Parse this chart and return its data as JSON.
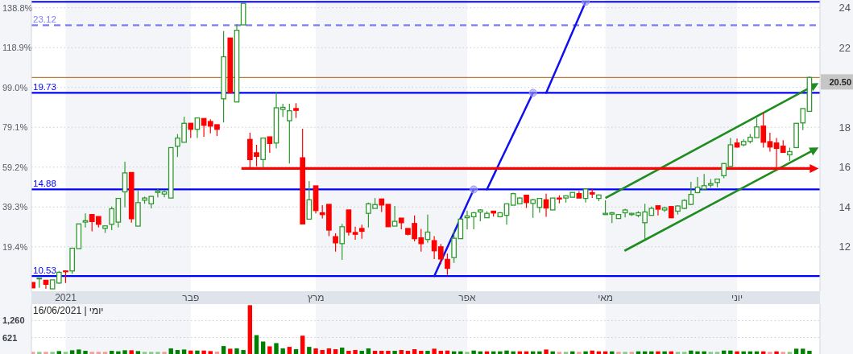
{
  "chart_data": [
    {
      "type": "candlestick",
      "categories": [
        null,
        null,
        null,
        null,
        null,
        "2021",
        null,
        null,
        null,
        null,
        null,
        null,
        null,
        null,
        null,
        null,
        null,
        null,
        null,
        null,
        null,
        null,
        null,
        null,
        "פבר",
        null,
        null,
        null,
        null,
        null,
        null,
        null,
        null,
        null,
        null,
        null,
        null,
        null,
        null,
        null,
        null,
        null,
        null,
        "מרץ",
        null,
        null,
        null,
        null,
        null,
        null,
        null,
        null,
        null,
        null,
        null,
        null,
        null,
        null,
        null,
        null,
        null,
        null,
        null,
        null,
        null,
        null,
        "אפר",
        null,
        null,
        null,
        null,
        null,
        null,
        null,
        null,
        null,
        null,
        null,
        null,
        null,
        null,
        null,
        null,
        null,
        null,
        null,
        null,
        "מאי",
        null,
        null,
        null,
        null,
        null,
        null,
        null,
        null,
        null,
        null,
        null,
        null,
        null,
        null,
        null,
        null,
        null,
        null,
        null,
        "יוני",
        null,
        null,
        null,
        null,
        null,
        null,
        null,
        null,
        null,
        null,
        null
      ],
      "ylim": [
        9.77,
        24.39
      ],
      "yticks": [
        12,
        14,
        16,
        18,
        {
          "value": 20,
          "label": null
        },
        22,
        24
      ],
      "y2lim": [
        -2.79,
        142.68
      ],
      "y2ticks": [
        {
          "value": 19.4,
          "label": "19.4%"
        },
        {
          "value": 39.3,
          "label": "39.3%"
        },
        {
          "value": 59.2,
          "label": "59.2%"
        },
        {
          "value": 79.1,
          "label": "79.1%"
        },
        {
          "value": 99.0,
          "label": "99.0%"
        },
        {
          "value": 118.9,
          "label": "118.9%"
        },
        {
          "value": 138.8,
          "label": "138.8%"
        }
      ],
      "grid": "y",
      "ohlc": [
        [
          10.21,
          10.21,
          9.94,
          9.94
        ],
        [
          10.4,
          10.45,
          9.94,
          10.43
        ],
        [
          10.32,
          10.32,
          9.89,
          10.12
        ],
        [
          9.89,
          10.34,
          9.89,
          10.34
        ],
        [
          10.18,
          10.79,
          10.14,
          10.72
        ],
        [
          10.79,
          10.8,
          10.18,
          10.75
        ],
        [
          10.79,
          11.93,
          10.65,
          11.93
        ],
        [
          11.91,
          13.15,
          11.91,
          13.15
        ],
        [
          13.24,
          13.68,
          12.97,
          13.31
        ],
        [
          13.62,
          13.62,
          12.78,
          13.27
        ],
        [
          13.52,
          13.52,
          12.97,
          13.13
        ],
        [
          12.93,
          13.08,
          12.7,
          13.05
        ],
        [
          13.13,
          14.02,
          12.84,
          13.91
        ],
        [
          13.24,
          14.43,
          12.97,
          14.43
        ],
        [
          14.76,
          16.27,
          13.98,
          15.71
        ],
        [
          15.73,
          15.73,
          13.21,
          13.41
        ],
        [
          13.04,
          14.83,
          13.04,
          14.22
        ],
        [
          14.34,
          14.52,
          14.16,
          14.45
        ],
        [
          14.16,
          14.56,
          13.93,
          14.53
        ],
        [
          14.73,
          14.92,
          14.49,
          14.8
        ],
        [
          14.65,
          14.83,
          14.49,
          14.76
        ],
        [
          14.45,
          16.98,
          14.45,
          16.98
        ],
        [
          17.05,
          17.66,
          16.51,
          17.46
        ],
        [
          17.25,
          18.53,
          17.25,
          18.2
        ],
        [
          18.2,
          18.2,
          17.46,
          17.9
        ],
        [
          17.9,
          18.47,
          17.46,
          18.47
        ],
        [
          18.44,
          18.44,
          17.52,
          18.1
        ],
        [
          18.29,
          18.4,
          17.7,
          18.06
        ],
        [
          18.13,
          18.13,
          17.56,
          17.9
        ],
        [
          19.43,
          22.84,
          18.24,
          21.54
        ],
        [
          22.48,
          22.48,
          19.74,
          19.74
        ],
        [
          19.27,
          23.18,
          19.27,
          22.87
        ],
        [
          23.14,
          24.22,
          23.14,
          24.22
        ],
        [
          17.39,
          17.73,
          15.93,
          16.38
        ],
        [
          16.72,
          17.12,
          16.04,
          16.54
        ],
        [
          16.38,
          17.46,
          15.97,
          17.46
        ],
        [
          17.52,
          17.52,
          16.72,
          17.19
        ],
        [
          17.21,
          19.77,
          16.94,
          18.98
        ],
        [
          18.9,
          19.18,
          18.51,
          19.0
        ],
        [
          18.33,
          19.18,
          16.18,
          18.83
        ],
        [
          18.94,
          19.21,
          18.47,
          18.85
        ],
        [
          16.47,
          17.93,
          13.15,
          13.15
        ],
        [
          13.39,
          15.3,
          13.39,
          14.36
        ],
        [
          15.06,
          15.06,
          13.68,
          13.82
        ],
        [
          13.71,
          14.09,
          13.42,
          13.62
        ],
        [
          14.13,
          14.13,
          12.54,
          12.84
        ],
        [
          12.51,
          12.68,
          11.76,
          12.2
        ],
        [
          12.16,
          13.15,
          11.35,
          13.01
        ],
        [
          13.85,
          13.85,
          12.57,
          12.74
        ],
        [
          12.72,
          13.01,
          12.35,
          12.63
        ],
        [
          12.92,
          13.11,
          12.41,
          12.78
        ],
        [
          13.68,
          14.22,
          12.97,
          14.16
        ],
        [
          13.93,
          14.45,
          13.93,
          14.12
        ],
        [
          14.4,
          14.4,
          13.75,
          14.1
        ],
        [
          14.13,
          14.13,
          13.01,
          13.01
        ],
        [
          13.04,
          14.05,
          13.04,
          13.28
        ],
        [
          13.44,
          13.44,
          12.88,
          13.21
        ],
        [
          12.92,
          12.92,
          12.57,
          12.63
        ],
        [
          13.17,
          13.58,
          12.27,
          12.41
        ],
        [
          12.45,
          12.9,
          11.76,
          12.16
        ],
        [
          12.37,
          13.62,
          12.2,
          12.74
        ],
        [
          12.31,
          12.54,
          11.39,
          11.8
        ],
        [
          12.0,
          12.14,
          11.13,
          11.39
        ],
        [
          11.37,
          11.66,
          10.59,
          10.92
        ],
        [
          11.46,
          12.84,
          11.19,
          12.43
        ],
        [
          12.41,
          13.39,
          12.41,
          13.39
        ],
        [
          13.46,
          13.82,
          12.88,
          13.55
        ],
        [
          13.51,
          13.75,
          12.88,
          13.71
        ],
        [
          13.75,
          13.89,
          13.28,
          13.85
        ],
        [
          13.46,
          13.79,
          13.45,
          13.68
        ],
        [
          13.79,
          13.79,
          13.52,
          13.7
        ],
        [
          13.51,
          13.75,
          13.48,
          13.71
        ],
        [
          13.58,
          14.16,
          13.11,
          14.16
        ],
        [
          14.09,
          14.72,
          14.09,
          14.67
        ],
        [
          14.16,
          14.49,
          14.16,
          14.45
        ],
        [
          14.59,
          14.59,
          13.95,
          14.22
        ],
        [
          14.18,
          14.4,
          13.46,
          14.36
        ],
        [
          13.98,
          14.43,
          13.71,
          14.43
        ],
        [
          14.36,
          14.67,
          13.51,
          13.95
        ],
        [
          13.85,
          14.45,
          13.85,
          14.45
        ],
        [
          14.45,
          14.59,
          14.18,
          14.4
        ],
        [
          14.45,
          14.58,
          14.22,
          14.56
        ],
        [
          14.49,
          14.73,
          14.49,
          14.73
        ],
        [
          14.67,
          14.8,
          14.45,
          14.45
        ],
        [
          14.43,
          14.94,
          14.22,
          14.9
        ],
        [
          14.72,
          14.9,
          14.45,
          14.65
        ],
        [
          14.43,
          14.63,
          14.29,
          14.6
        ],
        [
          13.62,
          14.34,
          13.62,
          13.68
        ],
        [
          13.64,
          13.75,
          13.19,
          13.71
        ],
        [
          13.42,
          13.65,
          13.4,
          13.62
        ],
        [
          13.71,
          13.91,
          13.48,
          13.85
        ],
        [
          13.62,
          13.71,
          13.55,
          13.68
        ],
        [
          13.58,
          13.79,
          13.48,
          13.71
        ],
        [
          13.21,
          14.16,
          12.37,
          13.75
        ],
        [
          13.58,
          14.02,
          13.58,
          13.93
        ],
        [
          14.06,
          14.06,
          13.58,
          13.89
        ],
        [
          13.85,
          14.02,
          13.75,
          13.95
        ],
        [
          14.02,
          14.02,
          13.46,
          13.46
        ],
        [
          13.79,
          14.09,
          13.62,
          14.05
        ],
        [
          13.93,
          14.38,
          13.89,
          14.33
        ],
        [
          14.13,
          15.26,
          14.09,
          14.63
        ],
        [
          14.72,
          15.5,
          14.69,
          14.99
        ],
        [
          14.9,
          15.66,
          14.9,
          15.07
        ],
        [
          15.1,
          15.4,
          14.97,
          15.17
        ],
        [
          15.23,
          15.4,
          14.99,
          15.4
        ],
        [
          15.57,
          16.2,
          15.44,
          16.18
        ],
        [
          16.04,
          17.46,
          16.04,
          17.12
        ],
        [
          17.21,
          17.43,
          16.98,
          17.01
        ],
        [
          17.12,
          17.39,
          17.05,
          17.29
        ],
        [
          17.29,
          17.66,
          17.19,
          17.5
        ],
        [
          17.48,
          18.47,
          17.48,
          18.02
        ],
        [
          18.06,
          18.74,
          16.98,
          17.25
        ],
        [
          17.28,
          17.73,
          16.78,
          17.01
        ],
        [
          17.21,
          17.46,
          15.97,
          16.94
        ],
        [
          17.05,
          17.35,
          16.72,
          16.74
        ],
        [
          16.62,
          16.98,
          16.31,
          16.78
        ],
        [
          16.98,
          18.2,
          16.98,
          18.2
        ],
        [
          18.22,
          18.94,
          17.86,
          18.94
        ],
        [
          18.8,
          20.55,
          18.8,
          20.5
        ]
      ],
      "colors": [
        "#ff0000",
        "#2e9a2e",
        "#ff0000",
        "#2e9a2e",
        "#2e9a2e",
        "#ff0000",
        "#2e9a2e",
        "#2e9a2e",
        "#2e9a2e",
        "#ff0000",
        "#ff0000",
        "#2e9a2e",
        "#2e9a2e",
        "#2e9a2e",
        "#2e9a2e",
        "#ff0000",
        "#2e9a2e",
        "#2e9a2e",
        "#2e9a2e",
        "#2e9a2e",
        "#2e9a2e",
        "#2e9a2e",
        "#2e9a2e",
        "#2e9a2e",
        "#ff0000",
        "#2e9a2e",
        "#ff0000",
        "#ff0000",
        "#ff0000",
        "#2e9a2e",
        "#ff0000",
        "#2e9a2e",
        "#2e9a2e",
        "#ff0000",
        "#ff0000",
        "#2e9a2e",
        "#ff0000",
        "#2e9a2e",
        "#2e9a2e",
        "#2e9a2e",
        "#ff0000",
        "#ff0000",
        "#2e9a2e",
        "#ff0000",
        "#ff0000",
        "#ff0000",
        "#ff0000",
        "#2e9a2e",
        "#ff0000",
        "#ff0000",
        "#ff0000",
        "#2e9a2e",
        "#2e9a2e",
        "#ff0000",
        "#ff0000",
        "#2e9a2e",
        "#ff0000",
        "#ff0000",
        "#ff0000",
        "#ff0000",
        "#2e9a2e",
        "#ff0000",
        "#ff0000",
        "#ff0000",
        "#2e9a2e",
        "#2e9a2e",
        "#2e9a2e",
        "#2e9a2e",
        "#2e9a2e",
        "#2e9a2e",
        "#ff0000",
        "#2e9a2e",
        "#2e9a2e",
        "#2e9a2e",
        "#2e9a2e",
        "#ff0000",
        "#2e9a2e",
        "#2e9a2e",
        "#ff0000",
        "#2e9a2e",
        "#ff0000",
        "#2e9a2e",
        "#2e9a2e",
        "#ff0000",
        "#2e9a2e",
        "#ff0000",
        "#2e9a2e",
        "#2e9a2e",
        "#2e9a2e",
        "#2e9a2e",
        "#2e9a2e",
        "#2e9a2e",
        "#2e9a2e",
        "#2e9a2e",
        "#2e9a2e",
        "#ff0000",
        "#2e9a2e",
        "#ff0000",
        "#2e9a2e",
        "#2e9a2e",
        "#2e9a2e",
        "#2e9a2e",
        "#2e9a2e",
        "#2e9a2e",
        "#2e9a2e",
        "#2e9a2e",
        "#2e9a2e",
        "#ff0000",
        "#2e9a2e",
        "#2e9a2e",
        "#2e9a2e",
        "#ff0000",
        "#ff0000",
        "#ff0000",
        "#ff0000",
        "#2e9a2e",
        "#2e9a2e",
        "#2e9a2e",
        "#2e9a2e"
      ],
      "series": [
        {
          "type": "line",
          "color": "#1010ee",
          "values": [
            null,
            null,
            null,
            null,
            null,
            null,
            null,
            null,
            null,
            null,
            null,
            null,
            null,
            null,
            null,
            null,
            null,
            null,
            null,
            null,
            null,
            null,
            null,
            null,
            null,
            null,
            null,
            null,
            null,
            null,
            null,
            null,
            null,
            null,
            null,
            null,
            null,
            null,
            null,
            null,
            null,
            null,
            null,
            null,
            null,
            null,
            null,
            null,
            null,
            null,
            null,
            null,
            null,
            null,
            null,
            null,
            null,
            null,
            null,
            null,
            null,
            10.53,
            11.26,
            11.98,
            12.71,
            13.43,
            14.16,
            14.88,
            null,
            14.88,
            15.57,
            16.27,
            16.96,
            17.65,
            18.34,
            19.04,
            19.73,
            null,
            19.73,
            20.49,
            21.25,
            22.02,
            22.78,
            23.54,
            24.3,
            null,
            null,
            null,
            null,
            null,
            null,
            null,
            null,
            null,
            null,
            null,
            null,
            null,
            null,
            null,
            null,
            null,
            null,
            null,
            null,
            null,
            null,
            null,
            null,
            null,
            null,
            null,
            null,
            null,
            null,
            null,
            null,
            null,
            null
          ]
        },
        {
          "type": "scatter",
          "color": "#9a9af2",
          "marker": "circle",
          "values": [
            null,
            null,
            null,
            null,
            null,
            null,
            null,
            null,
            null,
            null,
            null,
            null,
            null,
            null,
            null,
            null,
            null,
            null,
            null,
            null,
            null,
            null,
            null,
            null,
            null,
            null,
            null,
            null,
            null,
            null,
            null,
            null,
            null,
            null,
            null,
            null,
            null,
            null,
            null,
            null,
            null,
            null,
            null,
            null,
            null,
            null,
            null,
            null,
            null,
            null,
            null,
            null,
            null,
            null,
            null,
            null,
            null,
            null,
            null,
            null,
            null,
            null,
            null,
            null,
            null,
            null,
            null,
            14.88,
            null,
            null,
            null,
            null,
            null,
            null,
            null,
            null,
            19.73,
            null,
            null,
            null,
            null,
            null,
            null,
            null,
            24.3,
            null,
            null,
            null,
            null,
            null,
            null,
            null,
            null,
            null,
            null,
            null,
            null,
            null,
            null,
            null,
            null,
            null,
            null,
            null,
            null,
            null,
            null,
            null,
            null,
            null,
            null,
            null,
            null,
            null,
            null,
            null,
            null,
            null,
            null
          ]
        }
      ],
      "ref_lines": [
        {
          "axis": "y",
          "value": 24.3,
          "color": "#0000ff"
        },
        {
          "axis": "y",
          "value": 23.12,
          "label": "23.12",
          "color": "#7d7df2",
          "line_style": "dashed"
        },
        {
          "axis": "y",
          "value": 20.5,
          "label": "20.50",
          "color": "#c0762e"
        },
        {
          "axis": "y",
          "value": 19.73,
          "label": "19.73",
          "color": "#0000ff"
        },
        {
          "axis": "y",
          "value": 14.88,
          "label": "14.88",
          "color": "#0000ff"
        },
        {
          "axis": "y",
          "value": 10.53,
          "label": "10.53",
          "color": "#0000ff"
        }
      ],
      "bands": [
        {
          "axis": "x",
          "from": "2021",
          "to": "פבר",
          "color": "#f4f5f8"
        },
        {
          "axis": "x",
          "from": "מרץ",
          "to": "אפר",
          "color": "#f4f5f8"
        },
        {
          "axis": "x",
          "from": "מאי",
          "to": "יוני",
          "color": "#f4f5f8"
        }
      ]
    },
    {
      "type": "bar",
      "title": "16/06/2021 | יומי",
      "categories": [
        null,
        null,
        null,
        null,
        null,
        "2021",
        null,
        null,
        null,
        null,
        null,
        null,
        null,
        null,
        null,
        null,
        null,
        null,
        null,
        null,
        null,
        null,
        null,
        null,
        "פבר",
        null,
        null,
        null,
        null,
        null,
        null,
        null,
        null,
        null,
        null,
        null,
        null,
        null,
        null,
        null,
        null,
        null,
        null,
        "מרץ",
        null,
        null,
        null,
        null,
        null,
        null,
        null,
        null,
        null,
        null,
        null,
        null,
        null,
        null,
        null,
        null,
        null,
        null,
        null,
        null,
        null,
        null,
        "אפר",
        null,
        null,
        null,
        null,
        null,
        null,
        null,
        null,
        null,
        null,
        null,
        null,
        null,
        null,
        null,
        null,
        null,
        null,
        null,
        null,
        "מאי",
        null,
        null,
        null,
        null,
        null,
        null,
        null,
        null,
        null,
        null,
        null,
        null,
        null,
        null,
        null,
        null,
        null,
        null,
        null,
        "יוני",
        null,
        null,
        null,
        null,
        null,
        null,
        null,
        null,
        null,
        null,
        null
      ],
      "values": [
        80,
        80,
        80,
        80,
        110,
        80,
        140,
        170,
        120,
        80,
        80,
        80,
        120,
        100,
        140,
        140,
        110,
        80,
        80,
        80,
        80,
        210,
        150,
        170,
        130,
        130,
        130,
        110,
        90,
        300,
        200,
        210,
        150,
        1840,
        710,
        470,
        290,
        410,
        210,
        270,
        180,
        690,
        270,
        210,
        150,
        210,
        180,
        240,
        120,
        150,
        120,
        210,
        120,
        120,
        120,
        120,
        150,
        120,
        180,
        120,
        120,
        200,
        120,
        130,
        100,
        100,
        80,
        130,
        100,
        100,
        100,
        100,
        130,
        100,
        100,
        100,
        100,
        100,
        170,
        100,
        80,
        80,
        100,
        80,
        100,
        130,
        100,
        100,
        100,
        80,
        80,
        80,
        100,
        100,
        100,
        100,
        100,
        100,
        80,
        80,
        130,
        100,
        100,
        80,
        80,
        130,
        130,
        100,
        100,
        100,
        100,
        100,
        80,
        100,
        80,
        80,
        200,
        200,
        120
      ],
      "colors": [
        "#f59a9a",
        "#88c888",
        "#f59a9a",
        "#88c888",
        "#008000",
        "#88c888",
        "#008000",
        "#008000",
        "#008000",
        "#f59a9a",
        "#f59a9a",
        "#f59a9a",
        "#008000",
        "#008000",
        "#008000",
        "#ff0000",
        "#008000",
        "#88c888",
        "#88c888",
        "#88c888",
        "#f59a9a",
        "#008000",
        "#008000",
        "#008000",
        "#ff0000",
        "#008000",
        "#ff0000",
        "#ff0000",
        "#f59a9a",
        "#008000",
        "#ff0000",
        "#008000",
        "#008000",
        "#ff0000",
        "#008000",
        "#008000",
        "#ff0000",
        "#008000",
        "#008000",
        "#ff0000",
        "#008000",
        "#ff0000",
        "#008000",
        "#ff0000",
        "#ff0000",
        "#ff0000",
        "#ff0000",
        "#008000",
        "#ff0000",
        "#ff0000",
        "#008000",
        "#008000",
        "#ff0000",
        "#ff0000",
        "#ff0000",
        "#008000",
        "#ff0000",
        "#ff0000",
        "#ff0000",
        "#ff0000",
        "#008000",
        "#ff0000",
        "#ff0000",
        "#ff0000",
        "#008000",
        "#008000",
        "#88c888",
        "#008000",
        "#008000",
        "#ff0000",
        "#008000",
        "#008000",
        "#008000",
        "#008000",
        "#ff0000",
        "#ff0000",
        "#008000",
        "#008000",
        "#ff0000",
        "#008000",
        "#f59a9a",
        "#88c888",
        "#008000",
        "#f59a9a",
        "#008000",
        "#ff0000",
        "#ff0000",
        "#ff0000",
        "#008000",
        "#f59a9a",
        "#88c888",
        "#f59a9a",
        "#008000",
        "#008000",
        "#008000",
        "#ff0000",
        "#008000",
        "#ff0000",
        "#88c888",
        "#88c888",
        "#008000",
        "#008000",
        "#008000",
        "#88c888",
        "#88c888",
        "#008000",
        "#008000",
        "#ff0000",
        "#008000",
        "#008000",
        "#008000",
        "#ff0000",
        "#f59a9a",
        "#ff0000",
        "#f59a9a",
        "#88c888",
        "#008000",
        "#008000",
        "#008000"
      ],
      "ylim": [
        0,
        1880
      ],
      "yticks": [
        {
          "value": 621,
          "label": "621"
        },
        {
          "value": 1260,
          "label": "1,260"
        }
      ],
      "grid": "y",
      "tick_labels": "y",
      "bands": [
        {
          "axis": "x",
          "from": "2021",
          "to": "פבר",
          "color": "#f4f5f8"
        },
        {
          "axis": "x",
          "from": "מרץ",
          "to": "אפר",
          "color": "#f4f5f8"
        },
        {
          "axis": "x",
          "from": "מאי",
          "to": "יוני",
          "color": "#f4f5f8"
        }
      ]
    }
  ]
}
